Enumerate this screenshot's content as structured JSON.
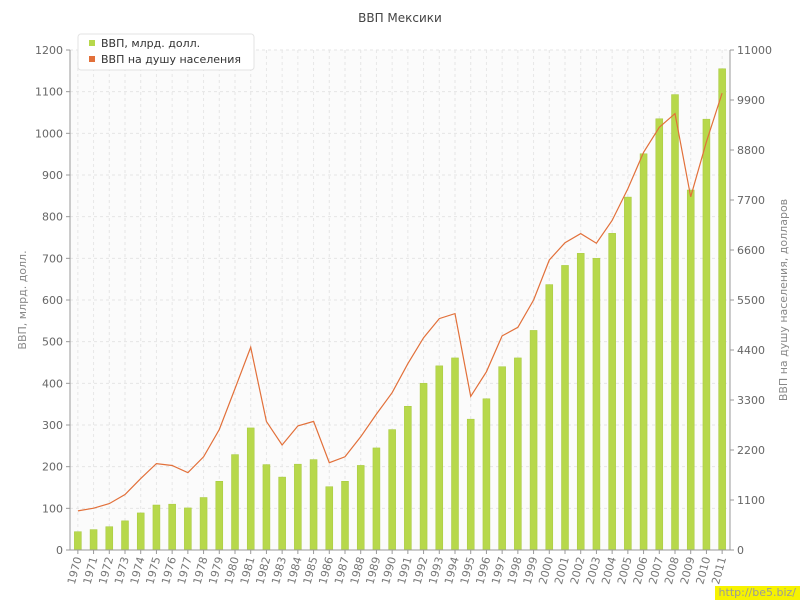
{
  "chart_data": {
    "type": "bar+line",
    "title": "ВВП Мексики",
    "ylabel_left": "ВВП, млрд. долл.",
    "ylabel_right": "ВВП на душу населения, долларов",
    "legend_position": "top-left",
    "grid": true,
    "categories": [
      "1970",
      "1971",
      "1972",
      "1973",
      "1974",
      "1975",
      "1976",
      "1977",
      "1978",
      "1979",
      "1980",
      "1981",
      "1982",
      "1983",
      "1984",
      "1985",
      "1986",
      "1987",
      "1988",
      "1989",
      "1990",
      "1991",
      "1992",
      "1993",
      "1994",
      "1995",
      "1996",
      "1997",
      "1998",
      "1999",
      "2000",
      "2001",
      "2002",
      "2003",
      "2004",
      "2005",
      "2006",
      "2007",
      "2008",
      "2009",
      "2010",
      "2011"
    ],
    "left_axis": {
      "ylim": [
        0,
        1200
      ],
      "ticks": [
        0,
        100,
        200,
        300,
        400,
        500,
        600,
        700,
        800,
        900,
        1000,
        1100,
        1200
      ]
    },
    "right_axis": {
      "ylim": [
        0,
        11000
      ],
      "ticks": [
        0,
        1100,
        2200,
        3300,
        4400,
        5500,
        6600,
        7700,
        8800,
        9900,
        11000
      ]
    },
    "series": [
      {
        "name": "ВВП, млрд. долл.",
        "type": "bar",
        "axis": "left",
        "color": "#b7d84b",
        "values": [
          44,
          49,
          56,
          70,
          89,
          108,
          110,
          101,
          126,
          165,
          229,
          293,
          205,
          175,
          206,
          217,
          152,
          165,
          203,
          245,
          289,
          345,
          400,
          442,
          461,
          314,
          363,
          440,
          461,
          527,
          637,
          683,
          712,
          700,
          760,
          847,
          951,
          1035,
          1093,
          864,
          1034,
          1155
        ]
      },
      {
        "name": "ВВП на душу населения",
        "type": "line",
        "axis": "right",
        "color": "#e2703a",
        "values": [
          860,
          920,
          1020,
          1220,
          1570,
          1900,
          1860,
          1700,
          2050,
          2650,
          3550,
          4460,
          2830,
          2310,
          2730,
          2830,
          1920,
          2050,
          2490,
          2990,
          3460,
          4100,
          4670,
          5090,
          5200,
          3380,
          3920,
          4710,
          4900,
          5500,
          6380,
          6760,
          6960,
          6750,
          7250,
          7950,
          8750,
          9300,
          9600,
          7770,
          8980,
          10050
        ]
      }
    ]
  },
  "watermark": "http://be5.biz/"
}
